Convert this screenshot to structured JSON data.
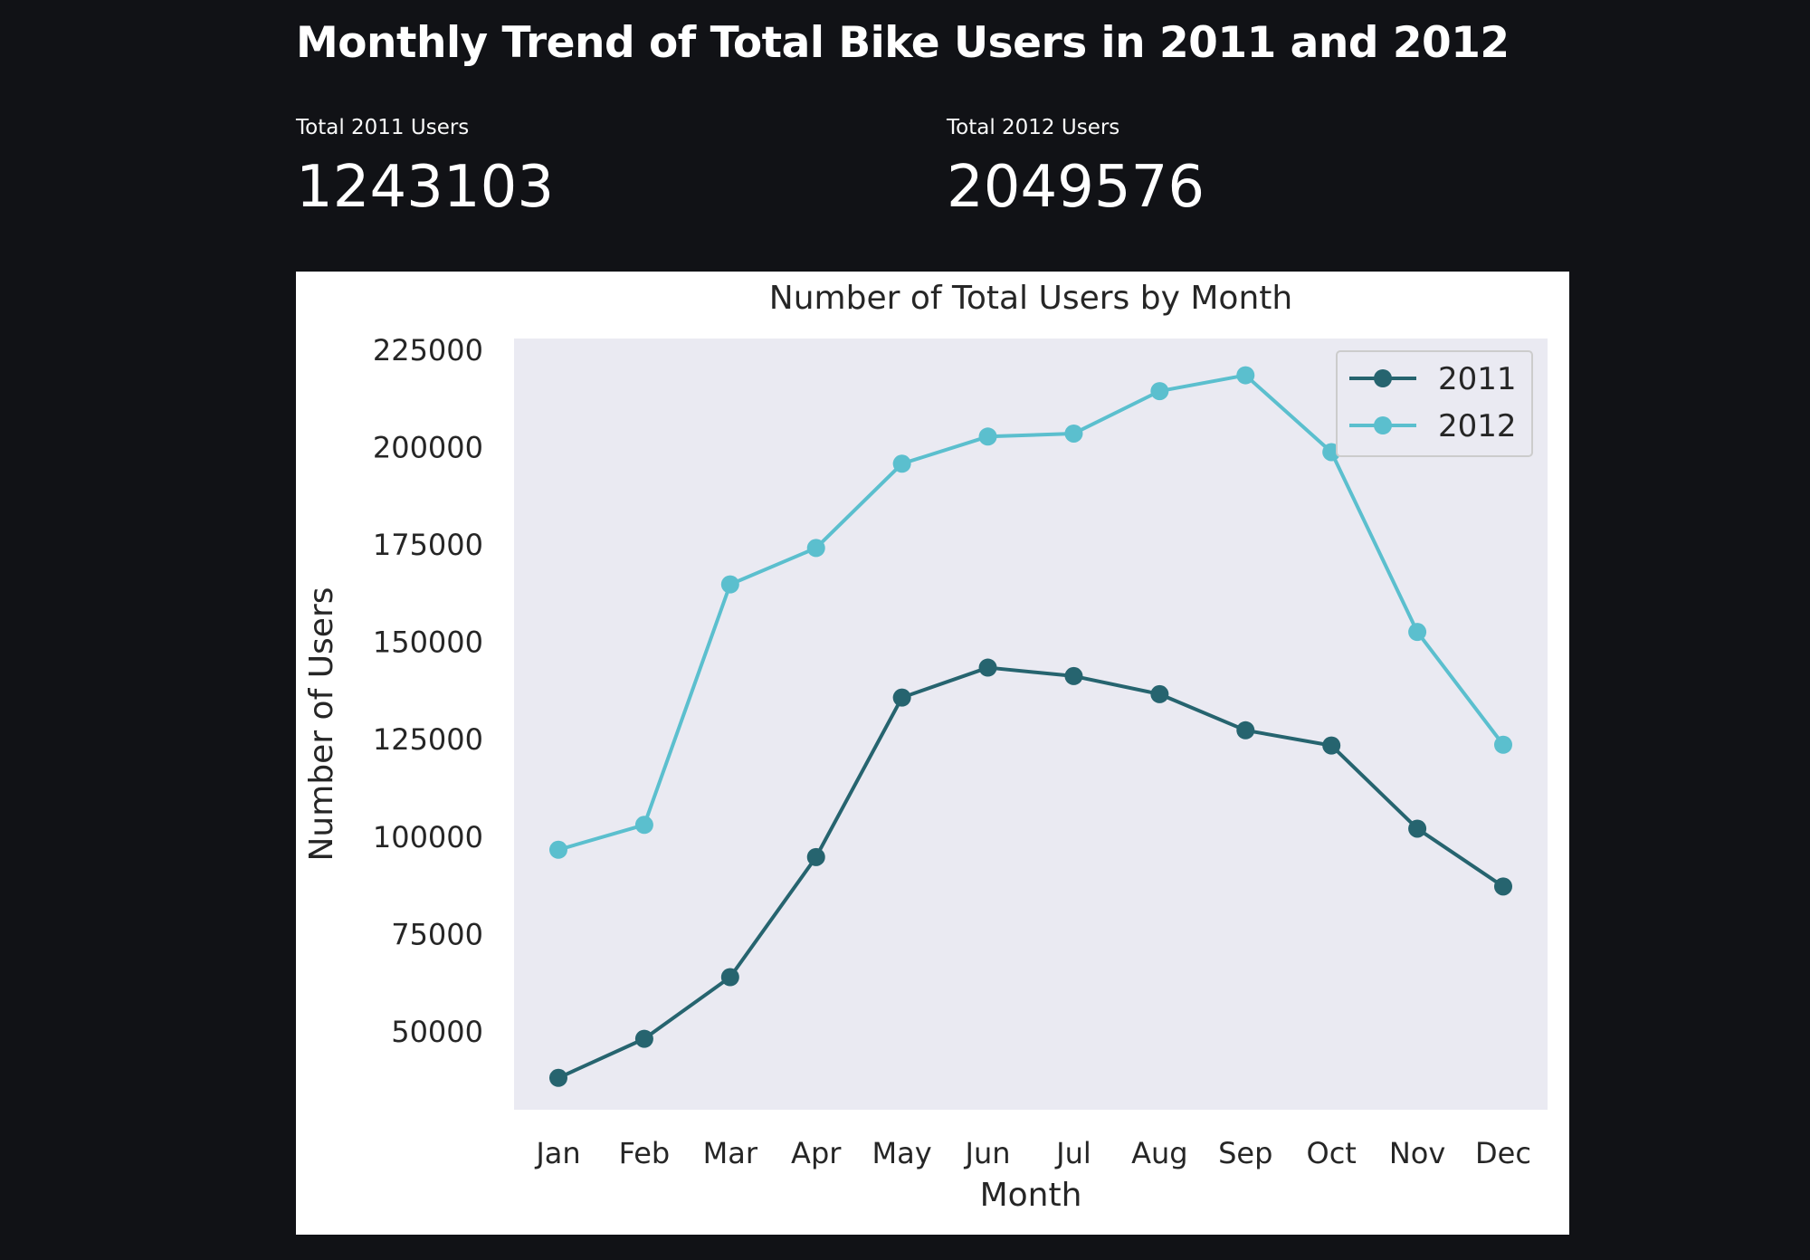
{
  "header": {
    "title": "Monthly Trend of Total Bike Users in 2011 and 2012"
  },
  "metrics": [
    {
      "label": "Total 2011 Users",
      "value": "1243103"
    },
    {
      "label": "Total 2012 Users",
      "value": "2049576"
    }
  ],
  "colors": {
    "background": "#111216",
    "plot_background": "#eaeaf2",
    "series_2011": "#26646f",
    "series_2012": "#5bbfce"
  },
  "chart_data": {
    "type": "line",
    "title": "Number of Total Users by Month",
    "xlabel": "Month",
    "ylabel": "Number of Users",
    "categories": [
      "Jan",
      "Feb",
      "Mar",
      "Apr",
      "May",
      "Jun",
      "Jul",
      "Aug",
      "Sep",
      "Oct",
      "Nov",
      "Dec"
    ],
    "yticks": [
      50000,
      75000,
      100000,
      125000,
      150000,
      175000,
      200000,
      225000
    ],
    "ylim": [
      30000,
      228000
    ],
    "grid": false,
    "legend_position": "top-right",
    "marker": "circle",
    "series": [
      {
        "name": "2011",
        "color": "#26646f",
        "values": [
          38189,
          48215,
          64045,
          94870,
          135821,
          143512,
          141341,
          136691,
          127418,
          123511,
          102167,
          87323
        ]
      },
      {
        "name": "2012",
        "color": "#5bbfce",
        "values": [
          96744,
          103137,
          164875,
          174224,
          195865,
          202830,
          203607,
          214503,
          218573,
          198841,
          152664,
          123713
        ]
      }
    ]
  }
}
